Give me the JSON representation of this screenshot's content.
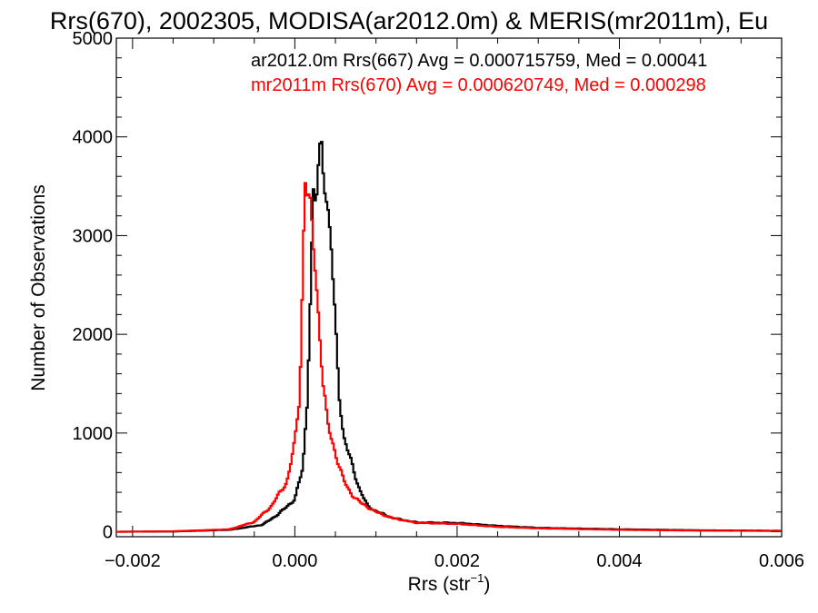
{
  "chart_data": {
    "type": "line",
    "title": "Rrs(670), 2002305, MODISA(ar2012.0m) & MERIS(mr2011m), Eu",
    "xlabel": "Rrs (str",
    "xlabel_sup": "−1",
    "xlabel_close": ")",
    "ylabel": "Number of Observations",
    "xlim": [
      -0.0022,
      0.006
    ],
    "ylim": [
      -50,
      5000
    ],
    "x_ticks": [
      {
        "value": -0.002,
        "label": "−0.002"
      },
      {
        "value": 0.0,
        "label": "0.000"
      },
      {
        "value": 0.002,
        "label": "0.002"
      },
      {
        "value": 0.004,
        "label": "0.004"
      },
      {
        "value": 0.006,
        "label": "0.006"
      }
    ],
    "y_ticks": [
      {
        "value": 0,
        "label": "0"
      },
      {
        "value": 1000,
        "label": "1000"
      },
      {
        "value": 2000,
        "label": "2000"
      },
      {
        "value": 3000,
        "label": "3000"
      },
      {
        "value": 4000,
        "label": "4000"
      },
      {
        "value": 5000,
        "label": "5000"
      }
    ],
    "grid": false,
    "legend_position": "top-right",
    "series": [
      {
        "name": "ar2012.0m Rrs(667) Avg = 0.000715759, Med = 0.00041",
        "color": "#000000",
        "x": [
          -0.0022,
          -0.0015,
          -0.0008,
          -0.0004,
          -0.0002,
          0.0,
          0.0001,
          0.00015,
          0.0002,
          0.00023,
          0.00026,
          0.0003,
          0.00033,
          0.00036,
          0.0004,
          0.00045,
          0.0005,
          0.00055,
          0.0006,
          0.0007,
          0.0008,
          0.0009,
          0.001,
          0.0012,
          0.0015,
          0.002,
          0.0025,
          0.003,
          0.004,
          0.005,
          0.006
        ],
        "y": [
          0,
          3,
          20,
          70,
          180,
          330,
          650,
          1300,
          2600,
          3350,
          3300,
          3800,
          3970,
          3700,
          3250,
          2850,
          2100,
          1400,
          950,
          700,
          420,
          260,
          210,
          140,
          95,
          90,
          60,
          40,
          25,
          15,
          10
        ]
      },
      {
        "name": "mr2011m Rrs(670) Avg = 0.000620749, Med = 0.000298",
        "color": "#ff0000",
        "x": [
          -0.0022,
          -0.0015,
          -0.0008,
          -0.0005,
          -0.0003,
          -0.0001,
          0.0,
          5e-05,
          8e-05,
          0.0001,
          0.00013,
          0.00016,
          0.00018,
          0.0002,
          0.00025,
          0.0003,
          0.00035,
          0.0004,
          0.0005,
          0.0006,
          0.0007,
          0.0008,
          0.0009,
          0.001,
          0.0012,
          0.0015,
          0.002,
          0.0025,
          0.003,
          0.004,
          0.005,
          0.006
        ],
        "y": [
          0,
          5,
          25,
          100,
          250,
          500,
          900,
          1300,
          1900,
          2800,
          3640,
          3400,
          3300,
          3150,
          2700,
          2100,
          1500,
          1100,
          800,
          520,
          380,
          300,
          250,
          200,
          140,
          90,
          80,
          50,
          35,
          20,
          12,
          8
        ]
      }
    ]
  }
}
